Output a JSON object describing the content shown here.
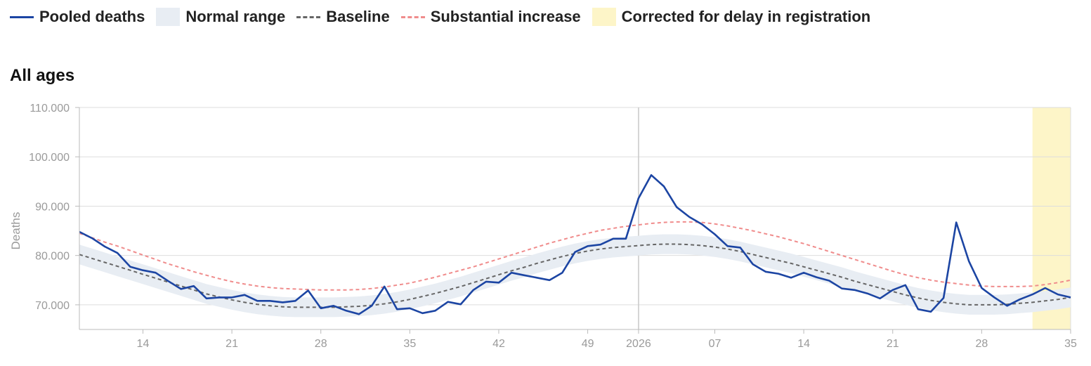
{
  "legend": {
    "pooled": "Pooled deaths",
    "normal": "Normal range",
    "baseline": "Baseline",
    "increase": "Substantial increase",
    "corrected": "Corrected for delay in registration"
  },
  "panel_title": "All ages",
  "colors": {
    "pooled": "#1c45a3",
    "band": "#e8edf3",
    "baseline": "#666666",
    "increase": "#f08c8c",
    "corrected": "#fdf5c8",
    "grid": "#dddddd"
  },
  "chart_data": {
    "type": "line",
    "title": "All ages",
    "ylabel": "Deaths",
    "ylim": [
      65000,
      110000
    ],
    "xlim": [
      0,
      78
    ],
    "y_ticks": [
      70000,
      80000,
      90000,
      100000,
      110000
    ],
    "y_tick_labels": [
      "70.000",
      "80.000",
      "90.000",
      "100.000",
      "110.000"
    ],
    "x_ticks": [
      {
        "x": 5,
        "label": "14"
      },
      {
        "x": 12,
        "label": "21"
      },
      {
        "x": 19,
        "label": "28"
      },
      {
        "x": 26,
        "label": "35"
      },
      {
        "x": 33,
        "label": "42"
      },
      {
        "x": 40,
        "label": "49"
      },
      {
        "x": 44,
        "label": "2026"
      },
      {
        "x": 50,
        "label": "07"
      },
      {
        "x": 57,
        "label": "14"
      },
      {
        "x": 64,
        "label": "21"
      },
      {
        "x": 71,
        "label": "28"
      },
      {
        "x": 78,
        "label": "35"
      }
    ],
    "year_divider_x": 44,
    "corrected_from_x": 75,
    "grid": true,
    "legend_position": "top-left",
    "series": [
      {
        "name": "Pooled deaths",
        "style": "solid",
        "values": [
          84800,
          83500,
          81800,
          80500,
          77700,
          77000,
          76500,
          74800,
          73200,
          73800,
          71300,
          71500,
          71500,
          72000,
          70800,
          70800,
          70500,
          70800,
          72900,
          69300,
          69800,
          68800,
          68100,
          69800,
          73700,
          69100,
          69300,
          68300,
          68800,
          70600,
          70100,
          73000,
          74700,
          74500,
          76500,
          76000,
          75500,
          75000,
          76500,
          80700,
          81900,
          82200,
          83400,
          83400,
          91600,
          96300,
          94000,
          89800,
          87800,
          86300,
          84300,
          81900,
          81600,
          78200,
          76700,
          76300,
          75500,
          76500,
          75600,
          74900,
          73300,
          73000,
          72300,
          71300,
          73000,
          74000,
          69100,
          68600,
          71400,
          86700,
          78800,
          73400,
          71500,
          69800,
          71100,
          72100,
          73400,
          72100,
          71500
        ]
      },
      {
        "name": "Baseline",
        "style": "dashed",
        "values": [
          80200,
          79400,
          78600,
          77800,
          77000,
          76200,
          75400,
          74600,
          73800,
          73000,
          72200,
          71600,
          71000,
          70500,
          70100,
          69800,
          69600,
          69500,
          69500,
          69500,
          69500,
          69600,
          69700,
          69900,
          70200,
          70600,
          71100,
          71700,
          72300,
          73000,
          73700,
          74500,
          75300,
          76100,
          76900,
          77600,
          78400,
          79100,
          79800,
          80400,
          80900,
          81300,
          81600,
          81800,
          82000,
          82200,
          82300,
          82300,
          82200,
          82000,
          81700,
          81300,
          80800,
          80200,
          79600,
          79000,
          78400,
          77700,
          77000,
          76300,
          75600,
          74800,
          74100,
          73400,
          72700,
          72000,
          71400,
          70900,
          70500,
          70200,
          70000,
          70000,
          70000,
          70100,
          70300,
          70500,
          70800,
          71100,
          71500
        ]
      },
      {
        "name": "Substantial increase",
        "style": "dashed",
        "values": [
          84500,
          83600,
          82700,
          81900,
          81000,
          80100,
          79200,
          78300,
          77500,
          76700,
          76000,
          75300,
          74700,
          74200,
          73800,
          73500,
          73300,
          73200,
          73100,
          73000,
          73000,
          73000,
          73100,
          73300,
          73600,
          74000,
          74400,
          75000,
          75600,
          76300,
          77000,
          77700,
          78500,
          79300,
          80100,
          80900,
          81700,
          82500,
          83200,
          83900,
          84500,
          85100,
          85500,
          85900,
          86200,
          86500,
          86700,
          86800,
          86800,
          86700,
          86400,
          86000,
          85500,
          85000,
          84400,
          83800,
          83100,
          82400,
          81600,
          80800,
          80000,
          79200,
          78400,
          77600,
          76800,
          76100,
          75500,
          75000,
          74600,
          74300,
          74000,
          73800,
          73700,
          73700,
          73700,
          73800,
          74100,
          74500,
          75000
        ]
      },
      {
        "name": "Normal range",
        "style": "band",
        "lower": [
          78200,
          77400,
          76600,
          75800,
          75000,
          74200,
          73400,
          72600,
          71800,
          71000,
          70200,
          69600,
          69000,
          68500,
          68100,
          67800,
          67600,
          67500,
          67500,
          67500,
          67500,
          67600,
          67700,
          67900,
          68200,
          68600,
          69100,
          69700,
          70300,
          71000,
          71700,
          72500,
          73300,
          74100,
          74900,
          75600,
          76400,
          77100,
          77800,
          78400,
          78900,
          79300,
          79600,
          79800,
          80000,
          80200,
          80300,
          80300,
          80200,
          80000,
          79700,
          79300,
          78800,
          78200,
          77600,
          77000,
          76400,
          75700,
          75000,
          74300,
          73600,
          72800,
          72100,
          71400,
          70700,
          70000,
          69400,
          68900,
          68500,
          68200,
          68000,
          68000,
          68000,
          68100,
          68300,
          68500,
          68800,
          69100,
          69500
        ],
        "upper": [
          82200,
          81400,
          80600,
          79800,
          79000,
          78200,
          77400,
          76600,
          75800,
          75000,
          74200,
          73600,
          73000,
          72500,
          72100,
          71800,
          71600,
          71500,
          71500,
          71500,
          71500,
          71600,
          71700,
          71900,
          72200,
          72600,
          73100,
          73700,
          74300,
          75000,
          75700,
          76500,
          77300,
          78100,
          78900,
          79600,
          80400,
          81100,
          81800,
          82400,
          82900,
          83300,
          83600,
          83800,
          84000,
          84200,
          84300,
          84300,
          84200,
          84000,
          83700,
          83300,
          82800,
          82200,
          81600,
          81000,
          80400,
          79700,
          79000,
          78300,
          77600,
          76800,
          76100,
          75400,
          74700,
          74000,
          73400,
          72900,
          72500,
          72200,
          72000,
          72000,
          72000,
          72100,
          72300,
          72500,
          72800,
          73100,
          73500
        ]
      }
    ]
  }
}
